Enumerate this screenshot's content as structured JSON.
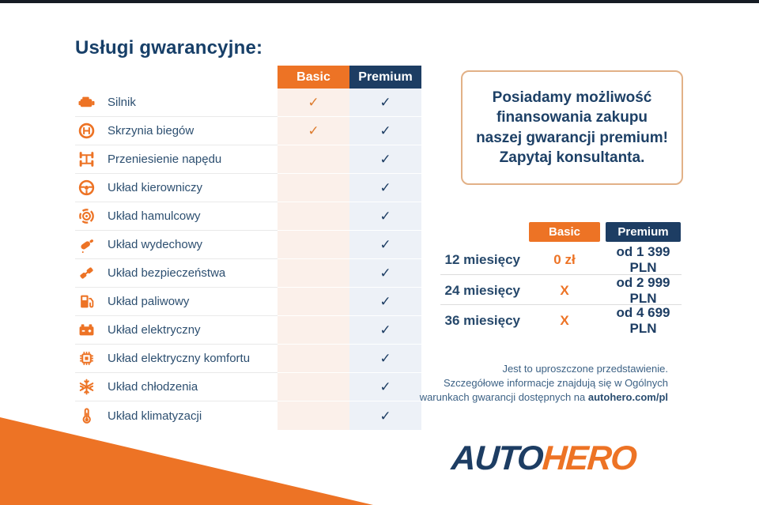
{
  "page": {
    "title": "Usługi gwarancyjne:"
  },
  "colors": {
    "orange": "#ed7325",
    "navy": "#1d3d63",
    "basic_column_bg": "#fbf0ea",
    "premium_column_bg": "#edf1f7",
    "promo_border": "#e2b187"
  },
  "services_table": {
    "columns": [
      "Basic",
      "Premium"
    ],
    "check": "✓",
    "rows": [
      {
        "icon": "engine-icon",
        "label": "Silnik",
        "basic": true,
        "premium": true
      },
      {
        "icon": "gearbox-icon",
        "label": "Skrzynia biegów",
        "basic": true,
        "premium": true
      },
      {
        "icon": "drivetrain-icon",
        "label": "Przeniesienie napędu",
        "basic": false,
        "premium": true
      },
      {
        "icon": "steering-wheel-icon",
        "label": "Układ kierowniczy",
        "basic": false,
        "premium": true
      },
      {
        "icon": "brake-disc-icon",
        "label": "Układ hamulcowy",
        "basic": false,
        "premium": true
      },
      {
        "icon": "exhaust-icon",
        "label": "Układ wydechowy",
        "basic": false,
        "premium": true
      },
      {
        "icon": "seatbelt-icon",
        "label": "Układ bezpieczeństwa",
        "basic": false,
        "premium": true
      },
      {
        "icon": "fuel-pump-icon",
        "label": "Układ paliwowy",
        "basic": false,
        "premium": true
      },
      {
        "icon": "battery-icon",
        "label": "Układ elektryczny",
        "basic": false,
        "premium": true
      },
      {
        "icon": "chip-icon",
        "label": "Układ elektryczny komfortu",
        "basic": false,
        "premium": true
      },
      {
        "icon": "snowflake-icon",
        "label": "Układ chłodzenia",
        "basic": false,
        "premium": true
      },
      {
        "icon": "thermometer-icon",
        "label": "Układ klimatyzacji",
        "basic": false,
        "premium": true
      }
    ]
  },
  "promo_box": {
    "text": "Posiadamy możliwość finansowania zakupu naszej gwarancji premium! Zapytaj konsultanta."
  },
  "pricing_table": {
    "columns": [
      "Basic",
      "Premium"
    ],
    "rows": [
      {
        "term": "12 miesięcy",
        "basic": "0 zł",
        "premium": "od 1 399 PLN"
      },
      {
        "term": "24 miesięcy",
        "basic": "X",
        "premium": "od 2 999 PLN"
      },
      {
        "term": "36 miesięcy",
        "basic": "X",
        "premium": "od 4 699 PLN"
      }
    ]
  },
  "disclaimer": {
    "line1": "Jest to uproszczone przedstawienie.",
    "line2": "Szczegółowe informacje znajdują się w Ogólnych",
    "line3_prefix": "warunkach gwarancji dostępnych na ",
    "line3_bold": "autohero.com/pl"
  },
  "logo": {
    "part1": "AUTO",
    "part2": "HERO"
  }
}
